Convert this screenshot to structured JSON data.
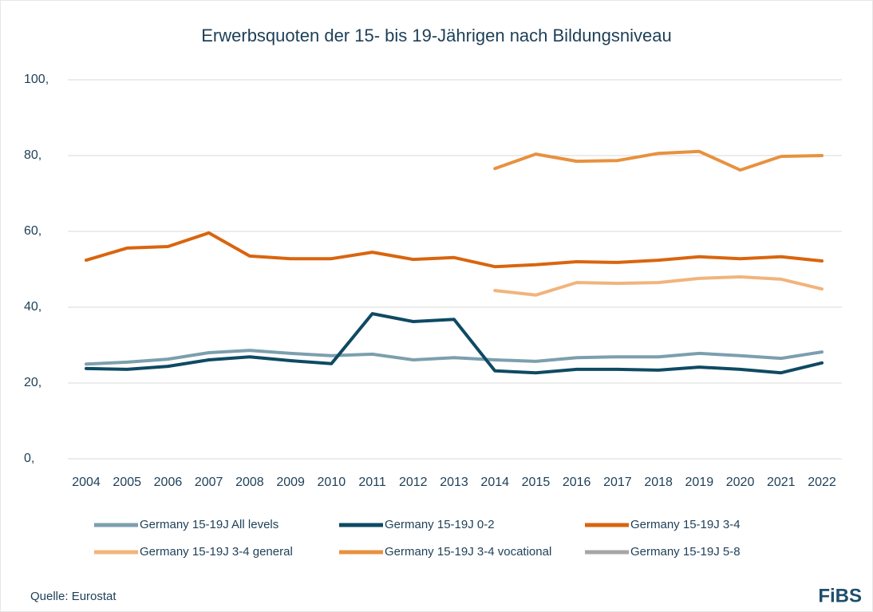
{
  "chart_data": {
    "type": "line",
    "title": "Erwerbsquoten der 15- bis 19-Jährigen nach Bildungsniveau",
    "categories": [
      "2004",
      "2005",
      "2006",
      "2007",
      "2008",
      "2009",
      "2010",
      "2011",
      "2012",
      "2013",
      "2014",
      "2015",
      "2016",
      "2017",
      "2018",
      "2019",
      "2020",
      "2021",
      "2022"
    ],
    "ylim": [
      0,
      100
    ],
    "yticks": [
      {
        "value": 0,
        "label": "0,"
      },
      {
        "value": 20,
        "label": "20,"
      },
      {
        "value": 40,
        "label": "40,"
      },
      {
        "value": 60,
        "label": "60,"
      },
      {
        "value": 80,
        "label": "80,"
      },
      {
        "value": 100,
        "label": "100,"
      }
    ],
    "grid": true,
    "legend": "bottom",
    "series": [
      {
        "name": "Germany 15-19J All levels",
        "color": "#7c9fae",
        "values": [
          25.0,
          25.5,
          26.3,
          28.0,
          28.6,
          27.8,
          27.2,
          27.6,
          26.1,
          26.7,
          26.1,
          25.7,
          26.7,
          26.9,
          26.9,
          27.8,
          27.2,
          26.5,
          28.2
        ]
      },
      {
        "name": "Germany 15-19J 0-2",
        "color": "#0e4a63",
        "values": [
          23.8,
          23.6,
          24.4,
          26.1,
          26.9,
          25.9,
          25.1,
          38.3,
          36.2,
          36.8,
          23.2,
          22.7,
          23.6,
          23.6,
          23.4,
          24.2,
          23.6,
          22.7,
          25.3
        ]
      },
      {
        "name": "Germany 15-19J 3-4",
        "color": "#d9650e",
        "values": [
          52.4,
          55.6,
          56.0,
          59.6,
          53.5,
          52.8,
          52.8,
          54.5,
          52.6,
          53.1,
          50.7,
          51.2,
          52.0,
          51.8,
          52.4,
          53.3,
          52.8,
          53.3,
          52.2
        ]
      },
      {
        "name": "Germany 15-19J 3-4 general",
        "color": "#f1b47c",
        "values": [
          null,
          null,
          null,
          null,
          null,
          null,
          null,
          null,
          null,
          null,
          44.4,
          43.2,
          46.5,
          46.3,
          46.5,
          47.6,
          48.0,
          47.4,
          44.8
        ]
      },
      {
        "name": "Germany 15-19J 3-4 vocational",
        "color": "#e8913f",
        "values": [
          null,
          null,
          null,
          null,
          null,
          null,
          null,
          null,
          null,
          null,
          76.6,
          80.4,
          78.5,
          78.7,
          80.6,
          81.1,
          76.2,
          79.8,
          80.0
        ]
      },
      {
        "name": "Germany 15-19J 5-8",
        "color": "#a6a6a6",
        "values": [
          null,
          null,
          null,
          null,
          null,
          null,
          null,
          null,
          null,
          null,
          null,
          null,
          null,
          null,
          null,
          null,
          null,
          null,
          null
        ]
      }
    ]
  },
  "footer": {
    "source": "Quelle: Eurostat",
    "logo": "FiBS"
  }
}
